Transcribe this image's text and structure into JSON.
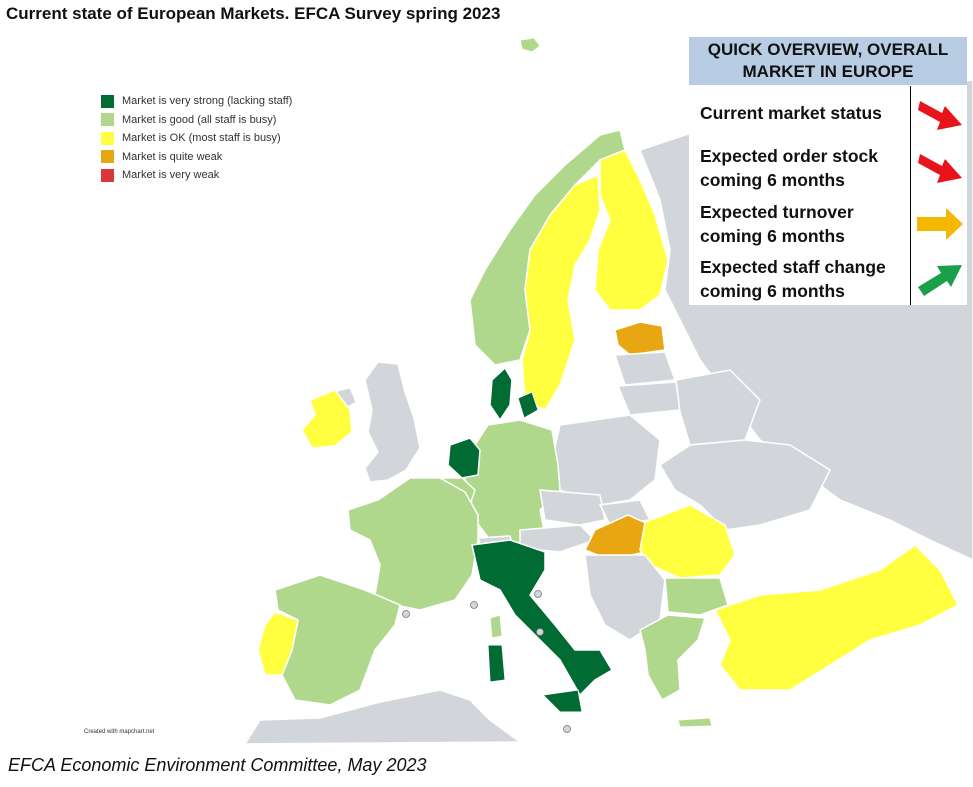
{
  "title": "Current state of European Markets. EFCA Survey spring 2023",
  "footer": "EFCA Economic Environment Committee, May 2023",
  "credit": "Created with mapchart.net",
  "legend": [
    {
      "label": "Market is very strong (lacking staff)",
      "color": "#006b33"
    },
    {
      "label": "Market is good (all staff is busy)",
      "color": "#b0d88d"
    },
    {
      "label": "Market is OK (most staff is busy)",
      "color": "#ffff3f"
    },
    {
      "label": "Market is quite weak",
      "color": "#e8a612"
    },
    {
      "label": "Market is very weak",
      "color": "#d9373c"
    }
  ],
  "overview": {
    "header": "QUICK OVERVIEW, OVERALL MARKET IN EUROPE",
    "rows": [
      {
        "label": "Current market status",
        "arrow": "arrow-down-right",
        "color": "#e8131b"
      },
      {
        "label": "Expected order stock coming 6 months",
        "arrow": "arrow-down-right",
        "color": "#e8131b"
      },
      {
        "label": "Expected turnover coming 6 months",
        "arrow": "arrow-right",
        "color": "#f5b800"
      },
      {
        "label": "Expected staff change coming 6 months",
        "arrow": "arrow-up-right",
        "color": "#1aa04b"
      }
    ]
  },
  "map": {
    "no_data_color": "#d2d6da",
    "countries": [
      {
        "name": "Norway",
        "status": "good"
      },
      {
        "name": "Sweden",
        "status": "ok"
      },
      {
        "name": "Finland",
        "status": "ok"
      },
      {
        "name": "Estonia",
        "status": "quite weak"
      },
      {
        "name": "Denmark",
        "status": "very strong"
      },
      {
        "name": "Netherlands",
        "status": "very strong"
      },
      {
        "name": "Ireland",
        "status": "ok"
      },
      {
        "name": "Germany",
        "status": "good"
      },
      {
        "name": "Belgium",
        "status": "good"
      },
      {
        "name": "France",
        "status": "good"
      },
      {
        "name": "Spain",
        "status": "good"
      },
      {
        "name": "Portugal",
        "status": "ok"
      },
      {
        "name": "Italy",
        "status": "very strong"
      },
      {
        "name": "Hungary",
        "status": "quite weak"
      },
      {
        "name": "Romania",
        "status": "ok"
      },
      {
        "name": "Bulgaria",
        "status": "good"
      },
      {
        "name": "Greece",
        "status": "good"
      },
      {
        "name": "Turkey",
        "status": "ok"
      }
    ]
  }
}
